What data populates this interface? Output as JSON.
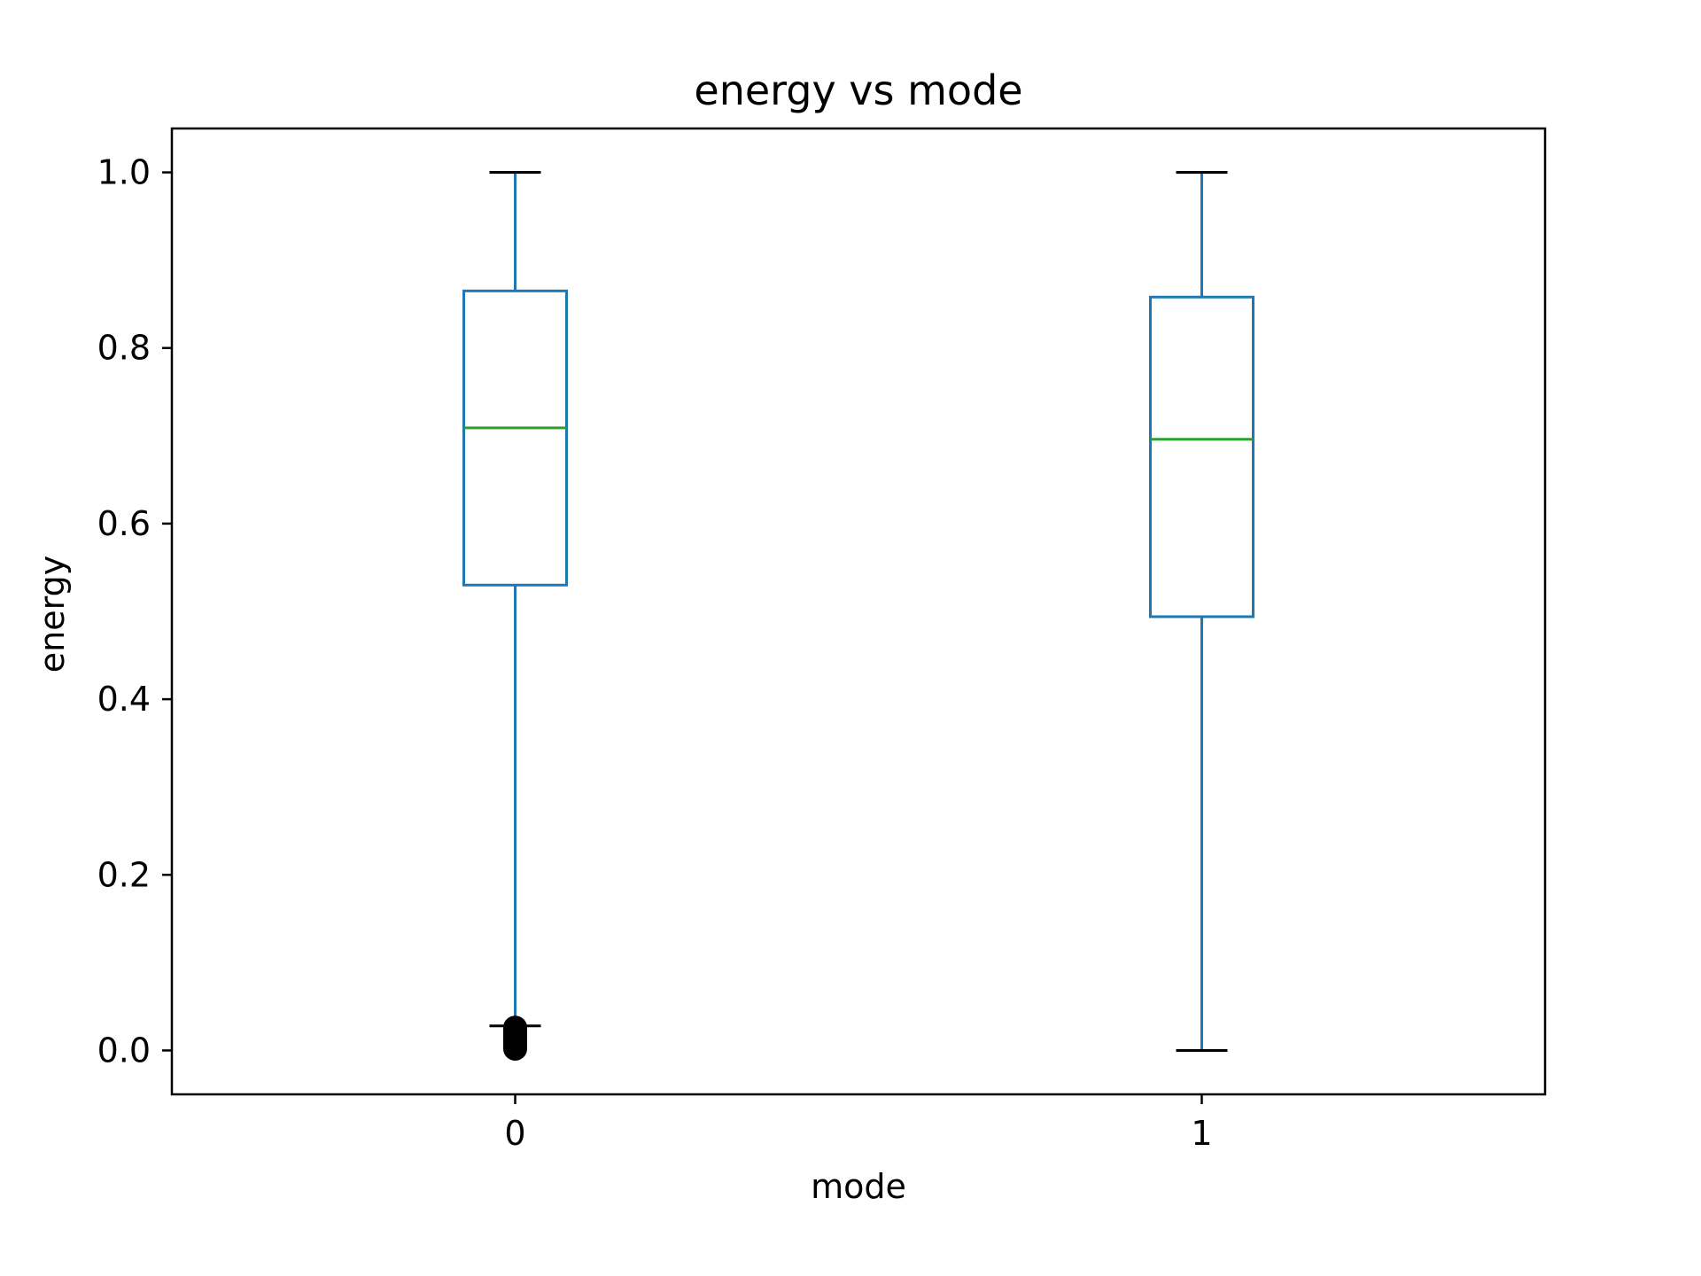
{
  "chart_data": {
    "type": "box",
    "title": "energy vs mode",
    "xlabel": "mode",
    "ylabel": "energy",
    "categories": [
      "0",
      "1"
    ],
    "ylim": [
      -0.05,
      1.05
    ],
    "yticks": [
      "0.0",
      "0.2",
      "0.4",
      "0.6",
      "0.8",
      "1.0"
    ],
    "ytick_values": [
      0.0,
      0.2,
      0.4,
      0.6,
      0.8,
      1.0
    ],
    "grid": false,
    "boxes": [
      {
        "category": "0",
        "whisker_low": 0.028,
        "q1": 0.53,
        "median": 0.709,
        "q3": 0.865,
        "whisker_high": 1.0,
        "outliers": [
          0.002,
          0.005,
          0.008,
          0.011,
          0.014,
          0.017,
          0.02,
          0.023,
          0.026
        ]
      },
      {
        "category": "1",
        "whisker_low": 0.0,
        "q1": 0.494,
        "median": 0.696,
        "q3": 0.858,
        "whisker_high": 1.0,
        "outliers": []
      }
    ],
    "colors": {
      "box": "#1f77b4",
      "median": "#2ca02c",
      "caps": "#000000",
      "outlier": "#000000"
    }
  }
}
